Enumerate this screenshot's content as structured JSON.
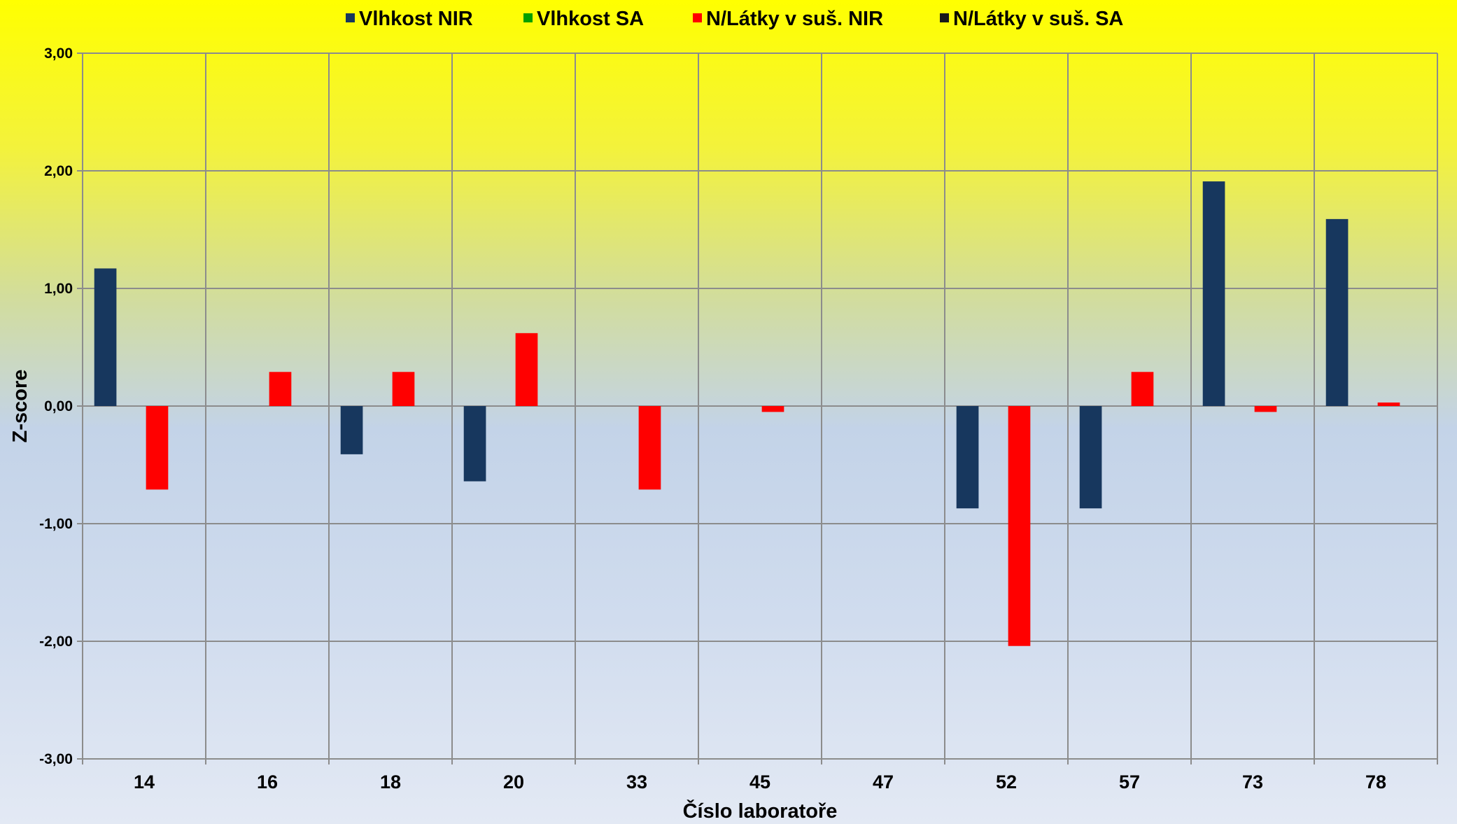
{
  "chart_data": {
    "type": "bar",
    "xlabel": "Číslo laboratoře",
    "ylabel": "Z-score",
    "ylim": [
      -3,
      3
    ],
    "yticks": [
      3,
      2,
      1,
      0,
      -1,
      -2,
      -3
    ],
    "ytick_labels": [
      "3,00",
      "2,00",
      "1,00",
      "0,00",
      "-1,00",
      "-2,00",
      "-3,00"
    ],
    "categories": [
      "14",
      "16",
      "18",
      "20",
      "33",
      "45",
      "47",
      "52",
      "57",
      "73",
      "78"
    ],
    "grid": true,
    "legend_position": "top",
    "series": [
      {
        "name": "Vlhkost NIR",
        "color": "#17375e",
        "values": [
          1.17,
          null,
          -0.41,
          -0.64,
          null,
          null,
          null,
          -0.87,
          -0.87,
          1.91,
          1.59
        ]
      },
      {
        "name": "Vlhkost SA",
        "color": "#00a000",
        "values": [
          null,
          null,
          null,
          null,
          null,
          null,
          null,
          null,
          null,
          null,
          null
        ]
      },
      {
        "name": "N/Látky v suš. NIR",
        "color": "#ff0000",
        "values": [
          -0.71,
          0.29,
          0.29,
          0.62,
          -0.71,
          -0.05,
          null,
          -2.04,
          0.29,
          -0.05,
          0.03
        ]
      },
      {
        "name": "N/Látky v suš. SA",
        "color": "#1a1a1a",
        "values": [
          null,
          null,
          null,
          null,
          null,
          null,
          null,
          null,
          null,
          null,
          null
        ]
      }
    ]
  }
}
